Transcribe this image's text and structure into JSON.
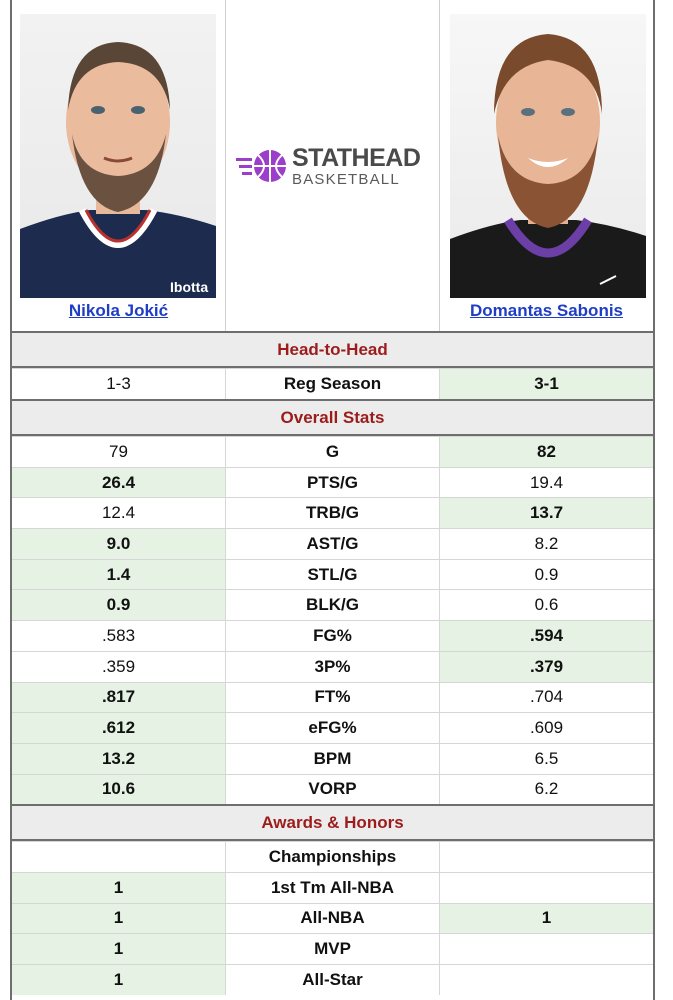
{
  "players": {
    "left": {
      "name": "Nikola Jokić",
      "jersey_color": "#1d2b4f"
    },
    "right": {
      "name": "Domantas Sabonis",
      "jersey_color": "#1a1a1a"
    }
  },
  "logo": {
    "line1": "STATHEAD",
    "line2": "BASKETBALL",
    "accent": "#9b3ec9"
  },
  "sections": {
    "head_to_head": "Head-to-Head",
    "overall": "Overall Stats",
    "awards": "Awards & Honors"
  },
  "head_to_head": [
    {
      "left": "1-3",
      "label": "Reg Season",
      "right": "3-1",
      "winner": "right"
    }
  ],
  "overall": [
    {
      "left": "79",
      "label": "G",
      "right": "82",
      "winner": "right"
    },
    {
      "left": "26.4",
      "label": "PTS/G",
      "right": "19.4",
      "winner": "left"
    },
    {
      "left": "12.4",
      "label": "TRB/G",
      "right": "13.7",
      "winner": "right"
    },
    {
      "left": "9.0",
      "label": "AST/G",
      "right": "8.2",
      "winner": "left"
    },
    {
      "left": "1.4",
      "label": "STL/G",
      "right": "0.9",
      "winner": "left"
    },
    {
      "left": "0.9",
      "label": "BLK/G",
      "right": "0.6",
      "winner": "left"
    },
    {
      "left": ".583",
      "label": "FG%",
      "right": ".594",
      "winner": "right"
    },
    {
      "left": ".359",
      "label": "3P%",
      "right": ".379",
      "winner": "right"
    },
    {
      "left": ".817",
      "label": "FT%",
      "right": ".704",
      "winner": "left"
    },
    {
      "left": ".612",
      "label": "eFG%",
      "right": ".609",
      "winner": "left"
    },
    {
      "left": "13.2",
      "label": "BPM",
      "right": "6.5",
      "winner": "left"
    },
    {
      "left": "10.6",
      "label": "VORP",
      "right": "6.2",
      "winner": "left"
    }
  ],
  "awards": [
    {
      "left": "",
      "label": "Championships",
      "right": "",
      "winner": "none"
    },
    {
      "left": "1",
      "label": "1st Tm All-NBA",
      "right": "",
      "winner": "left"
    },
    {
      "left": "1",
      "label": "All-NBA",
      "right": "1",
      "winner": "both"
    },
    {
      "left": "1",
      "label": "MVP",
      "right": "",
      "winner": "left"
    },
    {
      "left": "1",
      "label": "All-Star",
      "right": "",
      "winner": "left"
    }
  ]
}
